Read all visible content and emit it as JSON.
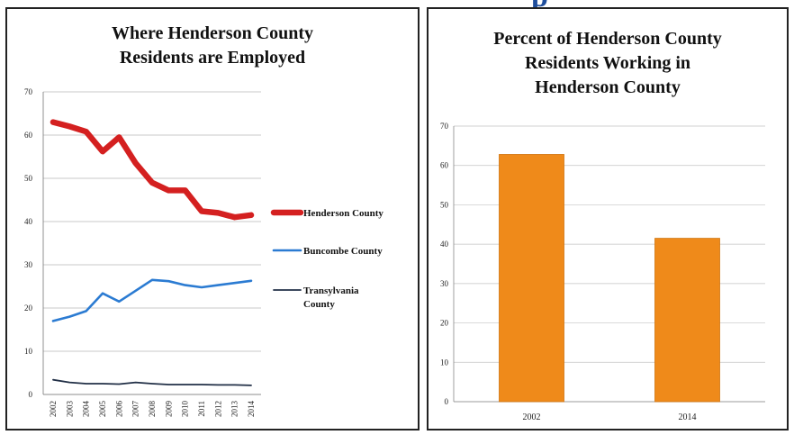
{
  "chart_data": [
    {
      "type": "line",
      "title_lines": [
        "Where Henderson County",
        "Residents are Employed"
      ],
      "x": [
        "2002",
        "2003",
        "2004",
        "2005",
        "2006",
        "2007",
        "2008",
        "2009",
        "2010",
        "2011",
        "2012",
        "2013",
        "2014"
      ],
      "ylim": [
        0,
        70
      ],
      "yticks": [
        0,
        10,
        20,
        30,
        40,
        50,
        60,
        70
      ],
      "grid": true,
      "legend": "right",
      "series": [
        {
          "name": "Henderson County",
          "color": "#d42020",
          "values": [
            63,
            62,
            60.8,
            56.2,
            59.5,
            53.5,
            49,
            47.2,
            47.2,
            42.4,
            42,
            41,
            41.5
          ]
        },
        {
          "name": "Buncombe County",
          "color": "#2b7bd2",
          "values": [
            17,
            18,
            19.3,
            23.4,
            21.5,
            24,
            26.5,
            26.2,
            25.3,
            24.8,
            25.3,
            25.8,
            26.3
          ]
        },
        {
          "name": "Transylvania County",
          "name_lines": [
            "Transylvania",
            "County"
          ],
          "color": "#223047",
          "values": [
            3.4,
            2.8,
            2.5,
            2.5,
            2.4,
            2.8,
            2.5,
            2.3,
            2.3,
            2.3,
            2.2,
            2.2,
            2.1
          ]
        }
      ]
    },
    {
      "type": "bar",
      "title_lines": [
        "Percent of Henderson County",
        "Residents Working in",
        "Henderson County"
      ],
      "categories": [
        "2002",
        "2014"
      ],
      "values": [
        62.8,
        41.5
      ],
      "color": "#ef8a1a",
      "ylim": [
        0,
        70
      ],
      "yticks": [
        0,
        10,
        20,
        30,
        40,
        50,
        60,
        70
      ],
      "grid": true
    }
  ]
}
